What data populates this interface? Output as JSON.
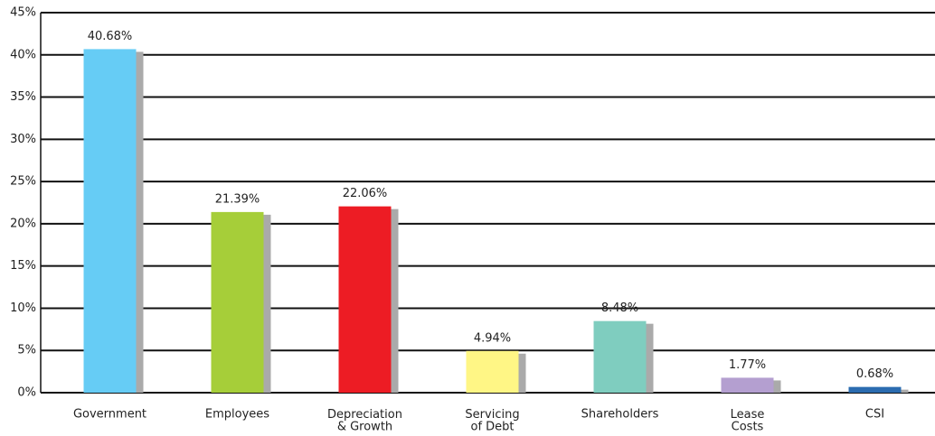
{
  "chart_data": {
    "type": "bar",
    "categories": [
      "Government",
      "Employees",
      "Depreciation\n& Growth",
      "Servicing\nof Debt",
      "Shareholders",
      "Lease\nCosts",
      "CSI"
    ],
    "values": [
      40.68,
      21.39,
      22.06,
      4.94,
      8.48,
      1.77,
      0.68
    ],
    "value_labels": [
      "40.68%",
      "21.39%",
      "22.06%",
      "4.94%",
      "8.48%",
      "1.77%",
      "0.68%"
    ],
    "colors": [
      "#66ccf5",
      "#a6ce39",
      "#ed1c24",
      "#fff685",
      "#7fcdbf",
      "#b49fd0",
      "#2b6cb0"
    ],
    "ylim": [
      0,
      45
    ],
    "yticks": [
      {
        "value": 0,
        "label": "0%"
      },
      {
        "value": 5,
        "label": "5%"
      },
      {
        "value": 10,
        "label": "10%"
      },
      {
        "value": 15,
        "label": "15%"
      },
      {
        "value": 20,
        "label": "20%"
      },
      {
        "value": 25,
        "label": "25%"
      },
      {
        "value": 30,
        "label": "30%"
      },
      {
        "value": 35,
        "label": "35%"
      },
      {
        "value": 40,
        "label": "40%"
      },
      {
        "value": 45,
        "label": "45%"
      }
    ],
    "grid": true
  }
}
